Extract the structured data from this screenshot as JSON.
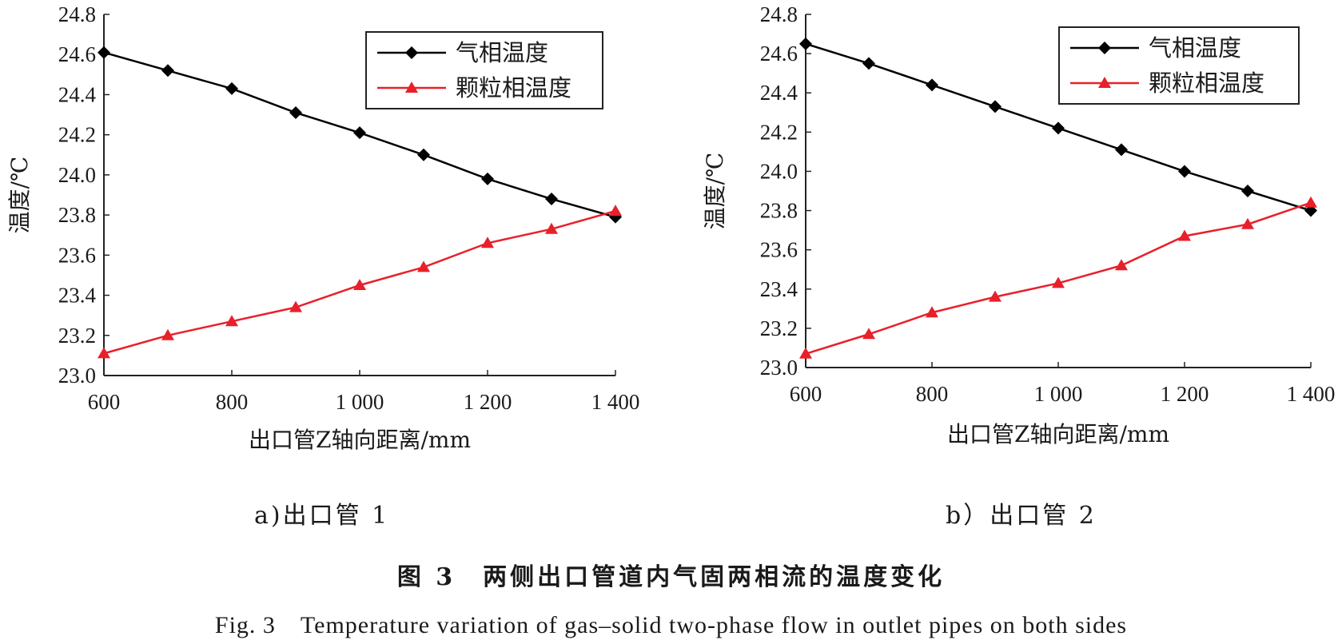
{
  "chart_data": [
    {
      "type": "line",
      "x": [
        600,
        700,
        800,
        900,
        1000,
        1100,
        1200,
        1300,
        1400
      ],
      "xlim": [
        600,
        1400
      ],
      "ylim": [
        23.0,
        24.8
      ],
      "x_ticks": [
        "600",
        "800",
        "1 000",
        "1 200",
        "1 400"
      ],
      "y_ticks": [
        "23.0",
        "23.2",
        "23.4",
        "23.6",
        "23.8",
        "24.0",
        "24.2",
        "24.4",
        "24.6",
        "24.8"
      ],
      "xlabel": "出口管Z轴向距离/mm",
      "ylabel": "温度/℃",
      "legend_position": "top-right",
      "series": [
        {
          "name": "气相温度",
          "color": "#000000",
          "marker": "diamond",
          "values": [
            24.61,
            24.52,
            24.43,
            24.31,
            24.21,
            24.1,
            23.98,
            23.88,
            23.79
          ]
        },
        {
          "name": "颗粒相温度",
          "color": "#e8202a",
          "marker": "triangle",
          "values": [
            23.11,
            23.2,
            23.27,
            23.34,
            23.45,
            23.54,
            23.66,
            23.73,
            23.82
          ]
        }
      ]
    },
    {
      "type": "line",
      "x": [
        600,
        700,
        800,
        900,
        1000,
        1100,
        1200,
        1300,
        1400
      ],
      "xlim": [
        600,
        1400
      ],
      "ylim": [
        23.0,
        24.8
      ],
      "x_ticks": [
        "600",
        "800",
        "1 000",
        "1 200",
        "1 400"
      ],
      "y_ticks": [
        "23.0",
        "23.2",
        "23.4",
        "23.6",
        "23.8",
        "24.0",
        "24.2",
        "24.4",
        "24.6",
        "24.8"
      ],
      "xlabel": "出口管Z轴向距离/mm",
      "ylabel": "温度/℃",
      "legend_position": "top-right",
      "series": [
        {
          "name": "气相温度",
          "color": "#000000",
          "marker": "diamond",
          "values": [
            24.65,
            24.55,
            24.44,
            24.33,
            24.22,
            24.11,
            24.0,
            23.9,
            23.8
          ]
        },
        {
          "name": "颗粒相温度",
          "color": "#e8202a",
          "marker": "triangle",
          "values": [
            23.07,
            23.17,
            23.28,
            23.36,
            23.43,
            23.52,
            23.67,
            23.73,
            23.84
          ]
        }
      ]
    }
  ],
  "subcaptions": [
    "a)出口管 1",
    "b）出口管 2"
  ],
  "figure_caption_zh": "图 3　两侧出口管道内气固两相流的温度变化",
  "figure_caption_en": "Fig. 3　Temperature variation of gas–solid two-phase flow in outlet pipes on both sides"
}
